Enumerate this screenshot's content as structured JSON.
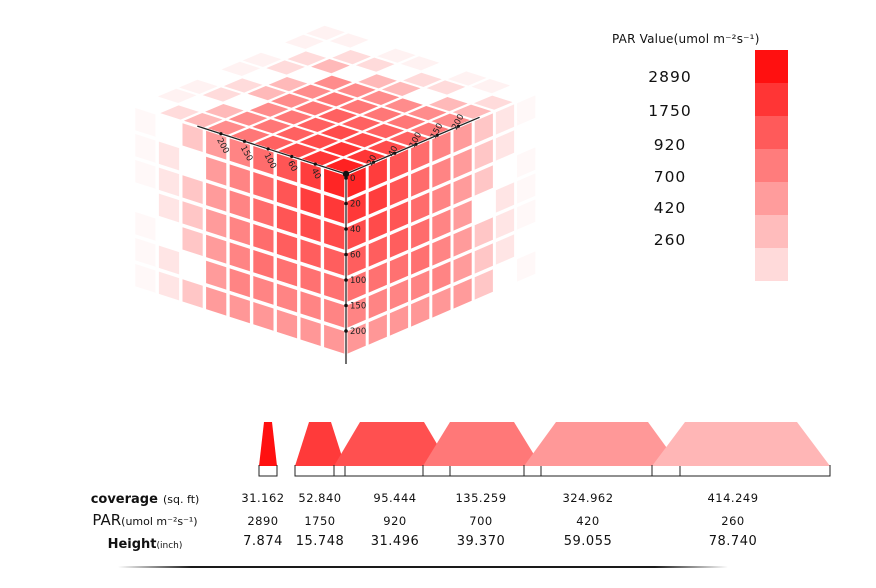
{
  "legend": {
    "title_main": "PAR Value",
    "title_unit": "(umol m⁻²s⁻¹)",
    "values": [
      "2890",
      "1750",
      "920",
      "700",
      "420",
      "260"
    ],
    "colors": [
      "#ff1010",
      "#ff3535",
      "#ff5a5a",
      "#ff7c7c",
      "#ff9c9c",
      "#ffbcbc",
      "#ffdada"
    ]
  },
  "cube": {
    "vertical_axis_ticks": [
      "0",
      "20",
      "40",
      "60",
      "100",
      "150",
      "200"
    ],
    "left_axis_ticks": [
      "40",
      "60",
      "100",
      "150",
      "200"
    ],
    "right_axis_ticks": [
      "20",
      "40",
      "100",
      "150",
      "200"
    ]
  },
  "table": {
    "rows": {
      "coverage": {
        "label": "coverage",
        "unit": "(sq. ft)"
      },
      "par": {
        "label": "PAR",
        "unit": "(umol m⁻²s⁻¹)"
      },
      "height": {
        "label": "Height",
        "unit": "(inch)"
      }
    },
    "columns": [
      {
        "coverage": "31.162",
        "par": "2890",
        "height": "7.874",
        "color": "#ff1010"
      },
      {
        "coverage": "52.840",
        "par": "1750",
        "height": "15.748",
        "color": "#ff3a3a"
      },
      {
        "coverage": "95.444",
        "par": "920",
        "height": "31.496",
        "color": "#ff5050"
      },
      {
        "coverage": "135.259",
        "par": "700",
        "height": "39.370",
        "color": "#ff7878"
      },
      {
        "coverage": "324.962",
        "par": "420",
        "height": "59.055",
        "color": "#ff9898"
      },
      {
        "coverage": "414.249",
        "par": "260",
        "height": "78.740",
        "color": "#ffb6b6"
      }
    ]
  }
}
